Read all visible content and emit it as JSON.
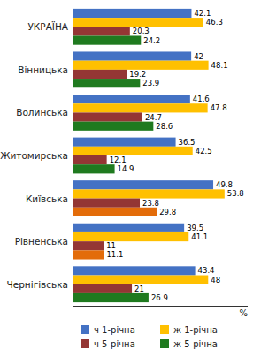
{
  "chart_data": {
    "type": "bar",
    "orientation": "horizontal",
    "categories": [
      "УКРАЇНА",
      "Вінницька",
      "Волинська",
      "Житомирська",
      "Київська",
      "Рівненська",
      "Чернігівська"
    ],
    "series": [
      {
        "name": "ч 1-річна",
        "color": "#4472C4",
        "values": [
          42.1,
          42.0,
          41.6,
          36.5,
          49.8,
          39.5,
          43.4
        ]
      },
      {
        "name": "ж 1-річна",
        "color": "#FFC000",
        "values": [
          46.3,
          48.1,
          47.8,
          42.5,
          53.8,
          41.1,
          48.0
        ]
      },
      {
        "name": "ч 5-річна",
        "color": "#943634",
        "values": [
          20.3,
          19.2,
          24.7,
          12.1,
          23.8,
          11.0,
          21.0
        ]
      },
      {
        "name": "ж 5-річна",
        "color": "#1F7A1F",
        "colors": [
          "#1F7A1F",
          "#1F7A1F",
          "#1F7A1F",
          "#1F7A1F",
          "#E36C0A",
          "#E36C0A",
          "#1F7A1F"
        ],
        "values": [
          24.2,
          23.9,
          28.6,
          14.9,
          29.8,
          11.1,
          26.9
        ]
      }
    ],
    "xlim": [
      0,
      62
    ],
    "xlabel": "%",
    "data_labels": true,
    "tick_labels": "y",
    "grid": false,
    "legend": "bottom"
  }
}
